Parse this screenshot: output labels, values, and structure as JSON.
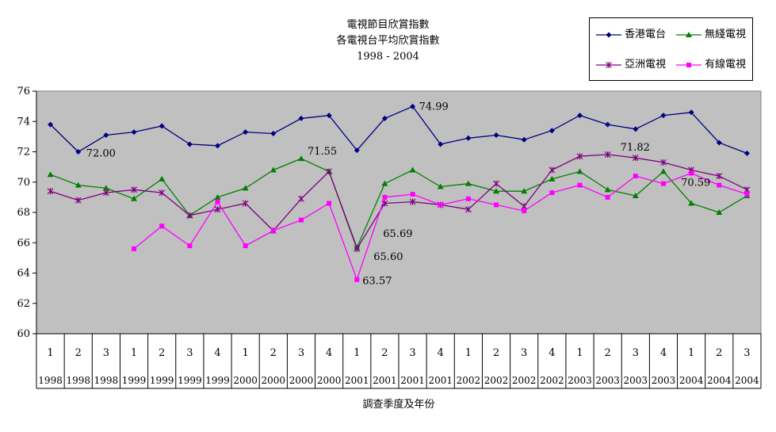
{
  "chart_data": {
    "type": "line",
    "title_lines": [
      "電視節目欣賞指數",
      "各電視台平均欣賞指數",
      "1998 - 2004"
    ],
    "xlabel": "調查季度及年份",
    "ylabel": "",
    "ylim": [
      60,
      76
    ],
    "yticks": [
      "60",
      "62",
      "64",
      "66",
      "68",
      "70",
      "72",
      "74",
      "76"
    ],
    "grid": false,
    "legend_position": "top-right",
    "categories": [
      {
        "q": "1",
        "y": "1998"
      },
      {
        "q": "2",
        "y": "1998"
      },
      {
        "q": "3",
        "y": "1998"
      },
      {
        "q": "1",
        "y": "1999"
      },
      {
        "q": "2",
        "y": "1999"
      },
      {
        "q": "3",
        "y": "1999"
      },
      {
        "q": "4",
        "y": "1999"
      },
      {
        "q": "1",
        "y": "2000"
      },
      {
        "q": "2",
        "y": "2000"
      },
      {
        "q": "3",
        "y": "2000"
      },
      {
        "q": "4",
        "y": "2000"
      },
      {
        "q": "1",
        "y": "2001"
      },
      {
        "q": "2",
        "y": "2001"
      },
      {
        "q": "3",
        "y": "2001"
      },
      {
        "q": "4",
        "y": "2001"
      },
      {
        "q": "1",
        "y": "2002"
      },
      {
        "q": "2",
        "y": "2002"
      },
      {
        "q": "3",
        "y": "2002"
      },
      {
        "q": "4",
        "y": "2002"
      },
      {
        "q": "1",
        "y": "2003"
      },
      {
        "q": "2",
        "y": "2003"
      },
      {
        "q": "3",
        "y": "2003"
      },
      {
        "q": "4",
        "y": "2003"
      },
      {
        "q": "1",
        "y": "2004"
      },
      {
        "q": "2",
        "y": "2004"
      },
      {
        "q": "3",
        "y": "2004"
      }
    ],
    "series": [
      {
        "name": "香港電台",
        "color": "#000080",
        "marker": "diamond",
        "values": [
          73.8,
          72.0,
          73.1,
          73.3,
          73.7,
          72.5,
          72.4,
          73.3,
          73.2,
          74.2,
          74.4,
          72.1,
          74.2,
          74.99,
          72.5,
          72.9,
          73.1,
          72.8,
          73.4,
          74.4,
          73.8,
          73.5,
          74.4,
          74.6,
          72.6,
          71.9
        ]
      },
      {
        "name": "無綫電視",
        "color": "#008000",
        "marker": "triangle",
        "values": [
          70.5,
          69.8,
          69.6,
          68.9,
          70.2,
          67.8,
          69.0,
          69.6,
          70.8,
          71.55,
          70.7,
          65.69,
          69.9,
          70.8,
          69.7,
          69.9,
          69.4,
          69.4,
          70.2,
          70.7,
          69.5,
          69.1,
          70.7,
          68.6,
          68.0,
          69.1
        ]
      },
      {
        "name": "亞洲電視",
        "color": "#800080",
        "marker": "star",
        "values": [
          69.4,
          68.8,
          69.3,
          69.5,
          69.3,
          67.8,
          68.2,
          68.6,
          66.8,
          68.9,
          70.7,
          65.6,
          68.6,
          68.7,
          68.5,
          68.2,
          69.9,
          68.4,
          70.8,
          71.7,
          71.82,
          71.6,
          71.3,
          70.8,
          70.4,
          69.5
        ]
      },
      {
        "name": "有線電視",
        "color": "#ff00ff",
        "marker": "square",
        "values": [
          null,
          null,
          null,
          65.6,
          67.1,
          65.8,
          68.7,
          65.8,
          66.8,
          67.5,
          68.6,
          63.57,
          69.0,
          69.2,
          68.5,
          68.9,
          68.5,
          68.1,
          69.3,
          69.8,
          69.0,
          70.4,
          69.9,
          70.59,
          69.8,
          69.2
        ]
      }
    ],
    "annotations": [
      "72.00",
      "71.55",
      "74.99",
      "65.69",
      "65.60",
      "63.57",
      "71.82",
      "70.59"
    ]
  }
}
